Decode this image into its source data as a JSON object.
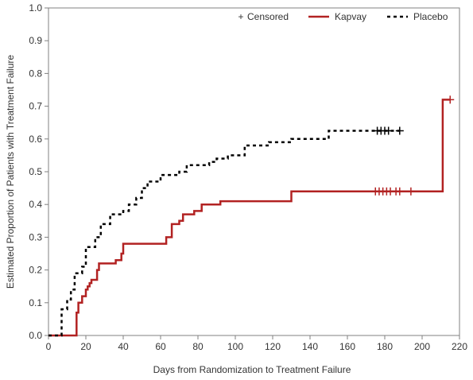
{
  "chart_data": {
    "type": "line",
    "step": true,
    "xlabel": "Days from Randomization to Treatment Failure",
    "ylabel": "Estimated Proportion of Patients with Treatment Failure",
    "xlim": [
      0,
      220
    ],
    "ylim": [
      0,
      1.0
    ],
    "xticks": [
      0,
      20,
      40,
      60,
      80,
      100,
      120,
      140,
      160,
      180,
      200,
      220
    ],
    "yticks": [
      "0.0",
      "0.1",
      "0.2",
      "0.3",
      "0.4",
      "0.5",
      "0.6",
      "0.7",
      "0.8",
      "0.9",
      "1.0"
    ],
    "legend": {
      "position": "top-right",
      "entries": [
        "Censored",
        "Kapvay",
        "Placebo"
      ]
    },
    "censor_symbol": "+",
    "series": [
      {
        "name": "Kapvay",
        "color": "#b22222",
        "style": "solid",
        "points": [
          [
            0,
            0
          ],
          [
            15,
            0
          ],
          [
            15,
            0.07
          ],
          [
            16,
            0.07
          ],
          [
            16,
            0.1
          ],
          [
            18,
            0.1
          ],
          [
            18,
            0.12
          ],
          [
            20,
            0.12
          ],
          [
            20,
            0.14
          ],
          [
            21,
            0.14
          ],
          [
            21,
            0.15
          ],
          [
            22,
            0.15
          ],
          [
            22,
            0.16
          ],
          [
            23,
            0.16
          ],
          [
            23,
            0.17
          ],
          [
            26,
            0.17
          ],
          [
            26,
            0.2
          ],
          [
            27,
            0.2
          ],
          [
            27,
            0.22
          ],
          [
            36,
            0.22
          ],
          [
            36,
            0.23
          ],
          [
            39,
            0.23
          ],
          [
            39,
            0.25
          ],
          [
            40,
            0.25
          ],
          [
            40,
            0.28
          ],
          [
            63,
            0.28
          ],
          [
            63,
            0.3
          ],
          [
            66,
            0.3
          ],
          [
            66,
            0.34
          ],
          [
            70,
            0.34
          ],
          [
            70,
            0.35
          ],
          [
            72,
            0.35
          ],
          [
            72,
            0.37
          ],
          [
            78,
            0.37
          ],
          [
            78,
            0.38
          ],
          [
            82,
            0.38
          ],
          [
            82,
            0.4
          ],
          [
            92,
            0.4
          ],
          [
            92,
            0.41
          ],
          [
            130,
            0.41
          ],
          [
            130,
            0.44
          ],
          [
            211,
            0.44
          ],
          [
            211,
            0.72
          ],
          [
            215,
            0.72
          ]
        ],
        "censored_x": [
          175,
          177,
          179,
          181,
          183,
          186,
          188,
          194,
          215
        ]
      },
      {
        "name": "Placebo",
        "color": "#000000",
        "style": "dashed",
        "points": [
          [
            0,
            0
          ],
          [
            7,
            0
          ],
          [
            7,
            0.08
          ],
          [
            10,
            0.08
          ],
          [
            10,
            0.11
          ],
          [
            12,
            0.11
          ],
          [
            12,
            0.14
          ],
          [
            14,
            0.14
          ],
          [
            14,
            0.19
          ],
          [
            18,
            0.19
          ],
          [
            18,
            0.21
          ],
          [
            20,
            0.21
          ],
          [
            20,
            0.27
          ],
          [
            25,
            0.27
          ],
          [
            25,
            0.3
          ],
          [
            28,
            0.3
          ],
          [
            28,
            0.34
          ],
          [
            33,
            0.34
          ],
          [
            33,
            0.37
          ],
          [
            40,
            0.37
          ],
          [
            40,
            0.38
          ],
          [
            43,
            0.38
          ],
          [
            43,
            0.4
          ],
          [
            47,
            0.4
          ],
          [
            47,
            0.42
          ],
          [
            50,
            0.42
          ],
          [
            50,
            0.45
          ],
          [
            53,
            0.45
          ],
          [
            53,
            0.47
          ],
          [
            60,
            0.47
          ],
          [
            60,
            0.49
          ],
          [
            70,
            0.49
          ],
          [
            70,
            0.5
          ],
          [
            74,
            0.5
          ],
          [
            74,
            0.52
          ],
          [
            86,
            0.52
          ],
          [
            86,
            0.53
          ],
          [
            90,
            0.53
          ],
          [
            90,
            0.54
          ],
          [
            96,
            0.54
          ],
          [
            96,
            0.55
          ],
          [
            105,
            0.55
          ],
          [
            105,
            0.58
          ],
          [
            118,
            0.58
          ],
          [
            118,
            0.59
          ],
          [
            130,
            0.59
          ],
          [
            130,
            0.6
          ],
          [
            150,
            0.6
          ],
          [
            150,
            0.625
          ],
          [
            188,
            0.625
          ]
        ],
        "censored_x": [
          176,
          178,
          180,
          182,
          188
        ]
      }
    ]
  }
}
